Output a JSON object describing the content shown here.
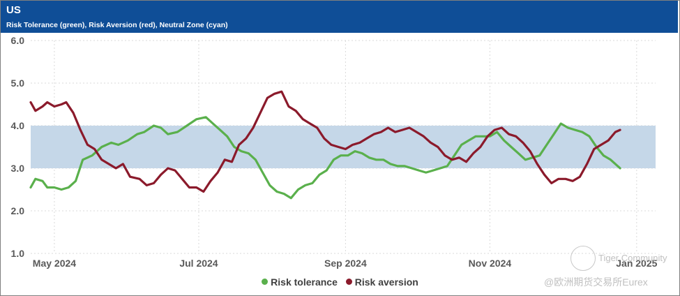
{
  "header": {
    "title": "US",
    "subtitle": "Risk Tolerance (green), Risk Aversion (red), Neutral Zone (cyan)"
  },
  "watermark": {
    "brand": "Tiger Community",
    "source": "@欧洲期货交易所Eurex"
  },
  "chart_data": {
    "type": "line",
    "title": "US",
    "subtitle": "Risk Tolerance (green), Risk Aversion (red), Neutral Zone (cyan)",
    "ylim": [
      1.0,
      6.0
    ],
    "yticks": [
      "1.0",
      "2.0",
      "3.0",
      "4.0",
      "5.0",
      "6.0"
    ],
    "xrange": [
      0,
      264
    ],
    "xticks": [
      {
        "pos": 10,
        "label": "May 2024"
      },
      {
        "pos": 71,
        "label": "Jul 2024"
      },
      {
        "pos": 133,
        "label": "Sep 2024"
      },
      {
        "pos": 194,
        "label": "Nov 2024"
      },
      {
        "pos": 256,
        "label": "Jan 2025"
      }
    ],
    "neutral_zone": [
      3.0,
      4.0
    ],
    "grid": true,
    "legend_position": "bottom",
    "colors": {
      "risk_tolerance": "#5ab04c",
      "risk_aversion": "#8b1a2b",
      "neutral_zone": "#c5d7e8",
      "header": "#0f4e97"
    },
    "series": [
      {
        "name": "Risk tolerance",
        "color": "#5ab04c",
        "points": [
          [
            0,
            2.55
          ],
          [
            2,
            2.75
          ],
          [
            5,
            2.7
          ],
          [
            7,
            2.55
          ],
          [
            10,
            2.55
          ],
          [
            13,
            2.5
          ],
          [
            16,
            2.55
          ],
          [
            19,
            2.7
          ],
          [
            22,
            3.2
          ],
          [
            26,
            3.3
          ],
          [
            30,
            3.5
          ],
          [
            34,
            3.6
          ],
          [
            37,
            3.55
          ],
          [
            41,
            3.65
          ],
          [
            45,
            3.8
          ],
          [
            48,
            3.85
          ],
          [
            52,
            4.0
          ],
          [
            55,
            3.95
          ],
          [
            58,
            3.8
          ],
          [
            62,
            3.85
          ],
          [
            66,
            4.0
          ],
          [
            70,
            4.15
          ],
          [
            74,
            4.2
          ],
          [
            77,
            4.05
          ],
          [
            80,
            3.9
          ],
          [
            83,
            3.75
          ],
          [
            86,
            3.5
          ],
          [
            89,
            3.4
          ],
          [
            92,
            3.35
          ],
          [
            95,
            3.2
          ],
          [
            98,
            2.9
          ],
          [
            101,
            2.6
          ],
          [
            104,
            2.45
          ],
          [
            107,
            2.4
          ],
          [
            110,
            2.3
          ],
          [
            113,
            2.5
          ],
          [
            116,
            2.6
          ],
          [
            119,
            2.65
          ],
          [
            122,
            2.85
          ],
          [
            125,
            2.95
          ],
          [
            128,
            3.2
          ],
          [
            131,
            3.3
          ],
          [
            134,
            3.3
          ],
          [
            137,
            3.4
          ],
          [
            140,
            3.35
          ],
          [
            143,
            3.25
          ],
          [
            146,
            3.2
          ],
          [
            149,
            3.2
          ],
          [
            152,
            3.1
          ],
          [
            155,
            3.05
          ],
          [
            158,
            3.05
          ],
          [
            161,
            3.0
          ],
          [
            164,
            2.95
          ],
          [
            167,
            2.9
          ],
          [
            170,
            2.95
          ],
          [
            173,
            3.0
          ],
          [
            176,
            3.05
          ],
          [
            179,
            3.3
          ],
          [
            182,
            3.55
          ],
          [
            185,
            3.65
          ],
          [
            188,
            3.75
          ],
          [
            191,
            3.75
          ],
          [
            194,
            3.75
          ],
          [
            197,
            3.85
          ],
          [
            200,
            3.65
          ],
          [
            203,
            3.5
          ],
          [
            206,
            3.35
          ],
          [
            209,
            3.2
          ],
          [
            212,
            3.25
          ],
          [
            215,
            3.3
          ],
          [
            218,
            3.55
          ],
          [
            221,
            3.8
          ],
          [
            224,
            4.05
          ],
          [
            227,
            3.95
          ],
          [
            230,
            3.9
          ],
          [
            233,
            3.85
          ],
          [
            236,
            3.75
          ],
          [
            239,
            3.5
          ],
          [
            242,
            3.3
          ],
          [
            245,
            3.2
          ],
          [
            248,
            3.05
          ],
          [
            249,
            3.0
          ]
        ]
      },
      {
        "name": "Risk aversion",
        "color": "#8b1a2b",
        "points": [
          [
            0,
            4.55
          ],
          [
            2,
            4.35
          ],
          [
            5,
            4.45
          ],
          [
            7,
            4.55
          ],
          [
            10,
            4.45
          ],
          [
            13,
            4.5
          ],
          [
            15,
            4.55
          ],
          [
            18,
            4.3
          ],
          [
            21,
            3.9
          ],
          [
            24,
            3.55
          ],
          [
            27,
            3.45
          ],
          [
            30,
            3.2
          ],
          [
            33,
            3.1
          ],
          [
            36,
            3.0
          ],
          [
            39,
            3.1
          ],
          [
            42,
            2.8
          ],
          [
            46,
            2.75
          ],
          [
            49,
            2.6
          ],
          [
            52,
            2.65
          ],
          [
            55,
            2.85
          ],
          [
            58,
            3.0
          ],
          [
            61,
            2.95
          ],
          [
            64,
            2.75
          ],
          [
            67,
            2.55
          ],
          [
            70,
            2.55
          ],
          [
            73,
            2.45
          ],
          [
            76,
            2.7
          ],
          [
            79,
            2.9
          ],
          [
            82,
            3.2
          ],
          [
            85,
            3.15
          ],
          [
            88,
            3.55
          ],
          [
            91,
            3.7
          ],
          [
            94,
            3.95
          ],
          [
            97,
            4.3
          ],
          [
            100,
            4.65
          ],
          [
            103,
            4.75
          ],
          [
            106,
            4.8
          ],
          [
            109,
            4.45
          ],
          [
            112,
            4.35
          ],
          [
            115,
            4.15
          ],
          [
            118,
            4.05
          ],
          [
            121,
            3.95
          ],
          [
            124,
            3.7
          ],
          [
            127,
            3.55
          ],
          [
            130,
            3.5
          ],
          [
            133,
            3.45
          ],
          [
            136,
            3.55
          ],
          [
            139,
            3.6
          ],
          [
            142,
            3.7
          ],
          [
            145,
            3.8
          ],
          [
            148,
            3.85
          ],
          [
            151,
            3.95
          ],
          [
            154,
            3.85
          ],
          [
            157,
            3.9
          ],
          [
            160,
            3.95
          ],
          [
            163,
            3.85
          ],
          [
            166,
            3.75
          ],
          [
            169,
            3.6
          ],
          [
            172,
            3.5
          ],
          [
            175,
            3.3
          ],
          [
            178,
            3.2
          ],
          [
            181,
            3.25
          ],
          [
            184,
            3.15
          ],
          [
            187,
            3.35
          ],
          [
            190,
            3.5
          ],
          [
            193,
            3.75
          ],
          [
            196,
            3.9
          ],
          [
            199,
            3.95
          ],
          [
            202,
            3.8
          ],
          [
            205,
            3.75
          ],
          [
            208,
            3.6
          ],
          [
            211,
            3.4
          ],
          [
            214,
            3.1
          ],
          [
            217,
            2.85
          ],
          [
            220,
            2.65
          ],
          [
            223,
            2.75
          ],
          [
            226,
            2.75
          ],
          [
            229,
            2.7
          ],
          [
            232,
            2.8
          ],
          [
            235,
            3.1
          ],
          [
            238,
            3.45
          ],
          [
            241,
            3.55
          ],
          [
            244,
            3.65
          ],
          [
            247,
            3.85
          ],
          [
            249,
            3.9
          ]
        ]
      }
    ]
  },
  "legend": {
    "items": [
      {
        "label": "Risk tolerance",
        "color": "#5ab04c"
      },
      {
        "label": "Risk aversion",
        "color": "#8b1a2b"
      }
    ]
  }
}
